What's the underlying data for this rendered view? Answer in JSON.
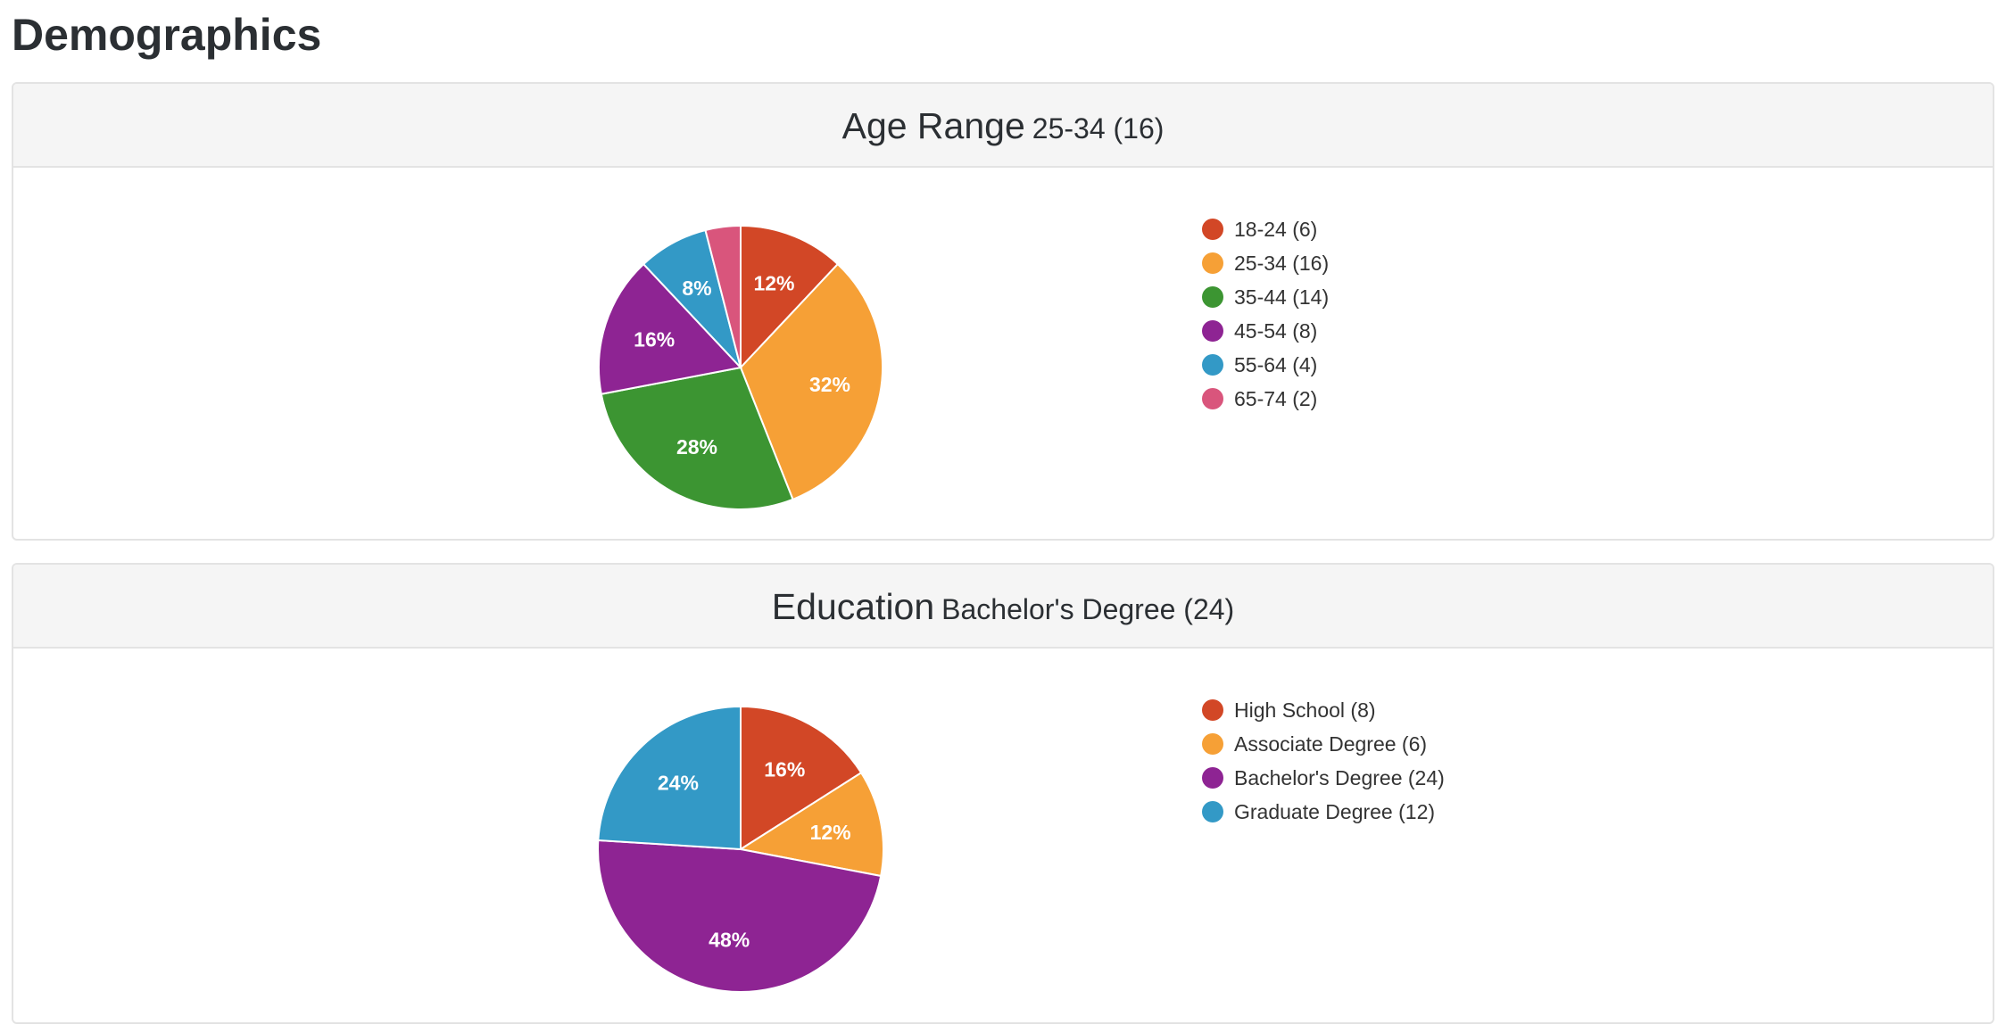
{
  "page": {
    "title": "Demographics"
  },
  "charts": {
    "age": {
      "header_title": "Age Range",
      "header_subtitle": "25-34 (16)"
    },
    "education": {
      "header_title": "Education",
      "header_subtitle": "Bachelor's Degree (24)"
    }
  },
  "chart_data": [
    {
      "type": "pie",
      "title": "Age Range",
      "subtitle": "25-34 (16)",
      "legend_position": "right",
      "slices": [
        {
          "label": "18-24 (6)",
          "value": 6,
          "percent_label": "12%",
          "color": "#d24726"
        },
        {
          "label": "25-34 (16)",
          "value": 16,
          "percent_label": "32%",
          "color": "#f6a036"
        },
        {
          "label": "35-44 (14)",
          "value": 14,
          "percent_label": "28%",
          "color": "#3c9532"
        },
        {
          "label": "45-54 (8)",
          "value": 8,
          "percent_label": "16%",
          "color": "#8e2493"
        },
        {
          "label": "55-64 (4)",
          "value": 4,
          "percent_label": "8%",
          "color": "#3399c6"
        },
        {
          "label": "65-74 (2)",
          "value": 2,
          "percent_label": "",
          "color": "#d9557c"
        }
      ]
    },
    {
      "type": "pie",
      "title": "Education",
      "subtitle": "Bachelor's Degree (24)",
      "legend_position": "right",
      "slices": [
        {
          "label": "High School (8)",
          "value": 8,
          "percent_label": "16%",
          "color": "#d24726"
        },
        {
          "label": "Associate Degree (6)",
          "value": 6,
          "percent_label": "12%",
          "color": "#f6a036"
        },
        {
          "label": "Bachelor's Degree (24)",
          "value": 24,
          "percent_label": "48%",
          "color": "#8e2493"
        },
        {
          "label": "Graduate Degree (12)",
          "value": 12,
          "percent_label": "24%",
          "color": "#3399c6"
        }
      ]
    }
  ]
}
